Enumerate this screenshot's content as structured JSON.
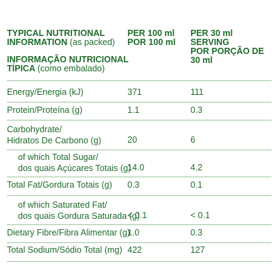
{
  "header": {
    "title_en": "TYPICAL NUTRITIONAL",
    "title_en_2": "INFORMATION",
    "title_en_note": "(as packed)",
    "title_pt": "INFORMAÇÃO NUTRICIONAL",
    "title_pt_2": "TÍPICA",
    "title_pt_note": "(como embalado)",
    "col1_line1": "PER 100 ml",
    "col1_line2": "POR 100 ml",
    "col2_line1": "PER 30 ml",
    "col2_line2": "SERVING",
    "col2_line3": "POR PORÇÃO DE 30 ml"
  },
  "rows": [
    {
      "label": "Energy/Energia (kJ)",
      "per100": "371",
      "serving": "111"
    },
    {
      "label": "Protein/Proteína (g)",
      "per100": "1.1",
      "serving": "0.3"
    },
    {
      "label": "Carbohydrate/",
      "label2": "Hidratos De Carbono (g)",
      "per100": "20",
      "serving": "6"
    },
    {
      "label": "of which Total Sugar/",
      "label2": "dos quais Açúcares Totais (g)",
      "per100": "14.0",
      "serving": "4.2"
    },
    {
      "label": "Total Fat/Gordura Totais (g)",
      "per100": "0.3",
      "serving": "0.1"
    },
    {
      "label": "of which Saturated Fat/",
      "label2": "dos quais Gordura Saturada (g)",
      "per100": "< 0.1",
      "serving": "< 0.1"
    },
    {
      "label": "Dietary Fibre/Fibra Alimentar (g)",
      "per100": "1.0",
      "serving": "0.3"
    },
    {
      "label": "Total Sodium/Sódio Total (mg)",
      "per100": "422",
      "serving": "127"
    }
  ]
}
